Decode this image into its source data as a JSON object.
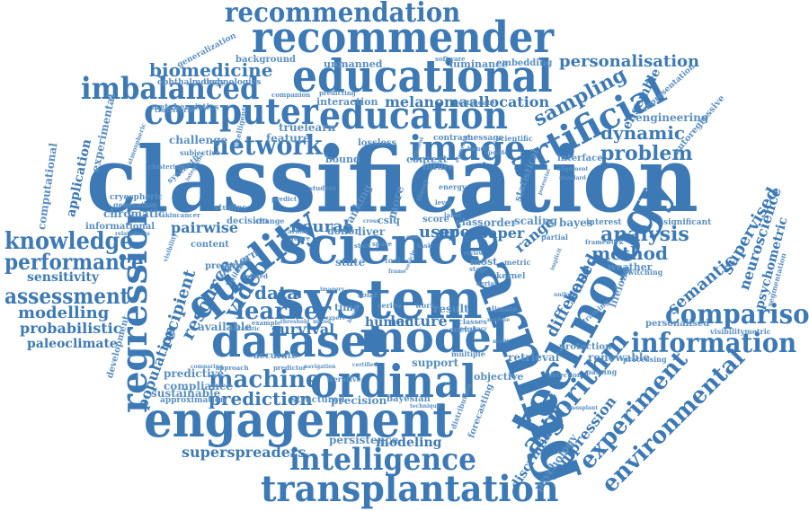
{
  "colors": {
    "primary": "#3d7ab5",
    "secondary": "#5a8fc2",
    "background": "#ffffff"
  },
  "words": {
    "classification": "classification",
    "system": "system",
    "science": "science",
    "learning": "learning",
    "technology": "technology",
    "engagement": "engagement",
    "dataset": "dataset",
    "model": "model",
    "ordinal": "ordinal",
    "educational": "educational",
    "education": "education",
    "recommender": "recommender",
    "recommendation": "recommendation",
    "computer": "computer",
    "imbalanced": "imbalanced",
    "artificial": "artificial",
    "image": "image",
    "network": "network",
    "quality": "quality",
    "regression": "regression",
    "transplantation": "transplantation",
    "intelligence": "intelligence",
    "comparison": "comparison",
    "information": "information",
    "algorithm": "algorithm",
    "experiment": "experiment",
    "environmental": "environmental",
    "knowledge": "knowledge",
    "performance": "performance",
    "assessment": "assessment",
    "modelling": "modelling",
    "probabilistic": "probabilistic",
    "paleoclimate": "paleoclimate",
    "sensitivity": "sensitivity",
    "machine": "machine",
    "prediction": "prediction",
    "learner": "learner",
    "video": "video",
    "data": "data",
    "neural": "neural",
    "problem": "problem",
    "dynamic": "dynamic",
    "analysis": "analysis",
    "method": "method",
    "sampling": "sampling",
    "biomedicine": "biomedicine",
    "personalisation": "personalisation",
    "melanoma": "melanoma",
    "allocation": "allocation",
    "superspreaders": "superspreaders",
    "modeling": "modeling",
    "persistence": "persistence",
    "survival": "survival",
    "lecture": "lecture",
    "resource": "resource",
    "pairwise": "pairwise",
    "supervised": "supervised",
    "neuroscience": "neuroscience",
    "psychometric": "psychometric",
    "semantic": "semantic",
    "different": "different",
    "based": "based",
    "compression": "compression",
    "discriminant": "discriminant",
    "psychology": "psychology",
    "ensemble": "ensemble",
    "engineering": "engineering",
    "autoregressive": "autoregressive",
    "representation": "representation",
    "unmanned": "unmanned",
    "luminance": "luminance",
    "embedding": "embedding",
    "background": "background",
    "generalization": "generalization",
    "ophthalmology": "ophthalmology",
    "technologies": "technologies",
    "metaheuristics": "metaheuristics",
    "interaction": "interaction",
    "feature": "feature",
    "truelearn": "truelearn",
    "challenge": "challenge",
    "experimental": "experimental",
    "application": "application",
    "computational": "computational",
    "chromatic": "chromatic",
    "informational": "informational",
    "content": "content",
    "available": "available",
    "predictive": "predictive",
    "compliance": "compliance",
    "population": "population",
    "sustainable": "sustainable",
    "development": "development",
    "approximation": "approximation",
    "recipient": "recipient",
    "pattern": "pattern",
    "support": "support",
    "retrieval": "retrieval",
    "objective": "objective",
    "bayesian": "bayesian",
    "precision": "precision",
    "structured": "structured",
    "human": "human",
    "result": "result",
    "user": "user",
    "open": "open",
    "paper": "paper",
    "range": "range",
    "bayes": "bayes",
    "scaling": "scaling",
    "order": "order",
    "class": "class",
    "state": "state",
    "time": "time",
    "accurate": "accurate",
    "decision": "decision",
    "liver": "liver",
    "donor": "donor",
    "bound": "bound",
    "context": "context",
    "ranking": "ranking",
    "more": "more",
    "most": "most",
    "renewable": "renewable",
    "protection": "protection",
    "weather": "weather",
    "personalised": "personalised",
    "lifelong": "lifelong",
    "interest": "interest",
    "significant": "significant",
    "visibilitymetric": "visibilitymetric",
    "segmentation": "segmentation",
    "statistical": "statistical",
    "certificate": "certificate",
    "contrast": "contrast",
    "message": "message",
    "scientific": "scientific",
    "lossless": "lossless",
    "forecasting": "forecasting",
    "processing": "processing",
    "interface": "interface",
    "cryospheric": "cryospheric",
    "generation": "generation",
    "kernel": "kernel",
    "social": "social",
    "future": "future",
    "iterative": "iterative",
    "present": "present",
    "multiple": "multiple",
    "studies": "studies",
    "distribution": "distribution",
    "metric": "metric",
    "subjective": "subjective",
    "score": "score",
    "solar": "solar",
    "series": "series",
    "work": "work",
    "climate": "climate",
    "transform": "transform",
    "synthetic": "synthetic",
    "intelligent": "intelligent",
    "companion": "companion",
    "predicting": "predicting",
    "software": "software",
    "bandit": "bandit",
    "framework": "framework",
    "switching": "switching",
    "training": "training",
    "passing": "passing",
    "detection": "detection",
    "clustering": "clustering",
    "atmospheric": "atmospheric",
    "relatedness": "relatedness",
    "skincancer": "skincancer",
    "predict": "predict",
    "student": "student",
    "carbon": "carbon",
    "aware": "aware",
    "energy": "energy",
    "tool": "tool",
    "label": "label",
    "task": "task",
    "stage": "stage",
    "level": "level",
    "theory": "theory",
    "classes": "classes",
    "partial": "partial",
    "uniform": "uniform",
    "predictor": "predictor",
    "navigation": "navigation",
    "certified": "certified",
    "aerial": "aerial",
    "example": "example",
    "threshold": "threshold",
    "mixed": "mixed",
    "building": "building",
    "comparing": "comparing",
    "approach": "approach",
    "related": "related",
    "change": "change",
    "visibility": "visibility",
    "benefit": "benefit",
    "review": "review",
    "module": "module",
    "multi": "multi",
    "space": "space",
    "start": "start",
    "specific": "specific",
    "cross": "cross",
    "cost": "cost",
    "efficient": "efficient",
    "elements": "elements",
    "potential": "potential",
    "implicit": "implicit",
    "alignment": "alignment",
    "standard": "standard",
    "accuracy": "accuracy",
    "technique": "technique",
    "vehicle": "vehicle",
    "transplant": "transplant",
    "integrative": "integrative",
    "imagery": "imagery",
    "expert": "expert",
    "statistic": "statistic",
    "csiq": "csiq",
    "frame": "frame"
  }
}
